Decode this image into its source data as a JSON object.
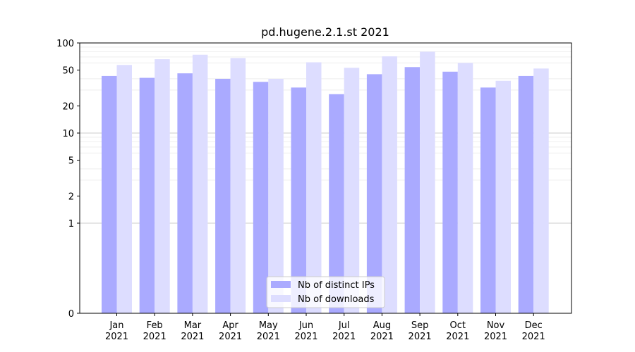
{
  "chart_data": {
    "type": "bar",
    "title": "pd.hugene.2.1.st 2021",
    "xlabel": "",
    "ylabel": "",
    "y_scale": "symlog",
    "ylim": [
      0,
      100
    ],
    "y_ticks": [
      0,
      1,
      2,
      5,
      10,
      20,
      50,
      100
    ],
    "grid": "horizontal",
    "categories": [
      [
        "Jan",
        "2021"
      ],
      [
        "Feb",
        "2021"
      ],
      [
        "Mar",
        "2021"
      ],
      [
        "Apr",
        "2021"
      ],
      [
        "May",
        "2021"
      ],
      [
        "Jun",
        "2021"
      ],
      [
        "Jul",
        "2021"
      ],
      [
        "Aug",
        "2021"
      ],
      [
        "Sep",
        "2021"
      ],
      [
        "Oct",
        "2021"
      ],
      [
        "Nov",
        "2021"
      ],
      [
        "Dec",
        "2021"
      ]
    ],
    "series": [
      {
        "name": "Nb of distinct IPs",
        "color": "#aaaaff",
        "values": [
          43,
          41,
          46,
          40,
          37,
          32,
          27,
          45,
          54,
          48,
          32,
          43
        ]
      },
      {
        "name": "Nb of downloads",
        "color": "#ddddff",
        "values": [
          57,
          66,
          74,
          68,
          40,
          61,
          53,
          71,
          80,
          60,
          38,
          52
        ]
      }
    ],
    "legend_position": "bottom-center"
  }
}
